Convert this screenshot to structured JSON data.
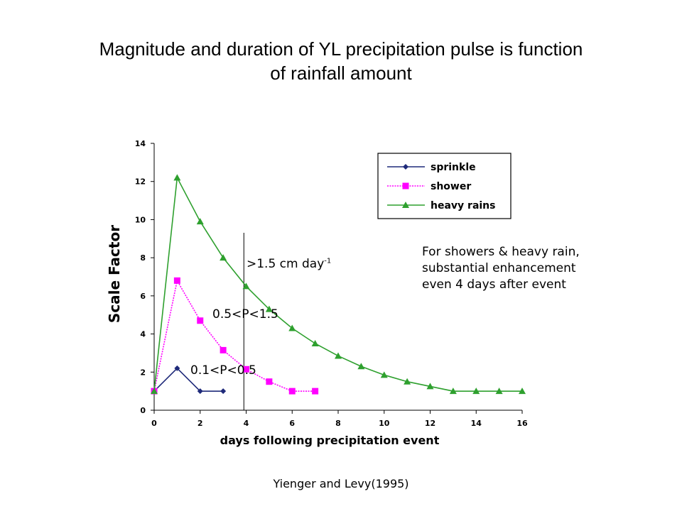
{
  "title": {
    "line1": "Magnitude and duration of YL precipitation pulse is function",
    "line2": "of rainfall amount"
  },
  "chart_data": {
    "type": "line",
    "xlabel": "days following precipitation event",
    "ylabel": "Scale Factor",
    "xlim": [
      0,
      16
    ],
    "ylim": [
      0,
      14
    ],
    "xticks": [
      0,
      2,
      4,
      6,
      8,
      10,
      12,
      14,
      16
    ],
    "yticks": [
      0,
      2,
      4,
      6,
      8,
      10,
      12,
      14
    ],
    "grid": false,
    "legend_position": "top-right",
    "series": [
      {
        "name": "sprinkle",
        "color": "#1f2a7a",
        "marker": "diamond",
        "x": [
          0,
          1,
          2,
          3
        ],
        "y": [
          1.0,
          2.2,
          1.0,
          1.0
        ]
      },
      {
        "name": "shower",
        "color": "#ff00ff",
        "marker": "square",
        "x": [
          0,
          1,
          2,
          3,
          4,
          5,
          6,
          7
        ],
        "y": [
          1.0,
          6.8,
          4.7,
          3.15,
          2.15,
          1.5,
          1.0,
          1.0
        ]
      },
      {
        "name": "heavy rains",
        "color": "#2ea02e",
        "marker": "triangle",
        "x": [
          0,
          1,
          2,
          3,
          4,
          5,
          6,
          7,
          8,
          9,
          10,
          11,
          12,
          13,
          14,
          15,
          16
        ],
        "y": [
          1.0,
          12.2,
          9.9,
          8.0,
          6.5,
          5.3,
          4.3,
          3.5,
          2.85,
          2.3,
          1.85,
          1.5,
          1.25,
          1.0,
          1.0,
          1.0,
          1.0
        ]
      }
    ],
    "reference_line_x": 3.9
  },
  "annotations": {
    "heavy_label": ">1.5 cm day",
    "heavy_label_sup": "-1",
    "shower_label": "0.5<P<1.5",
    "sprinkle_label": "0.1<P<0.5"
  },
  "note": {
    "line1": "For showers & heavy rain,",
    "line2": "substantial enhancement",
    "line3": "even 4 days after event"
  },
  "citation": "Yienger and Levy(1995)"
}
